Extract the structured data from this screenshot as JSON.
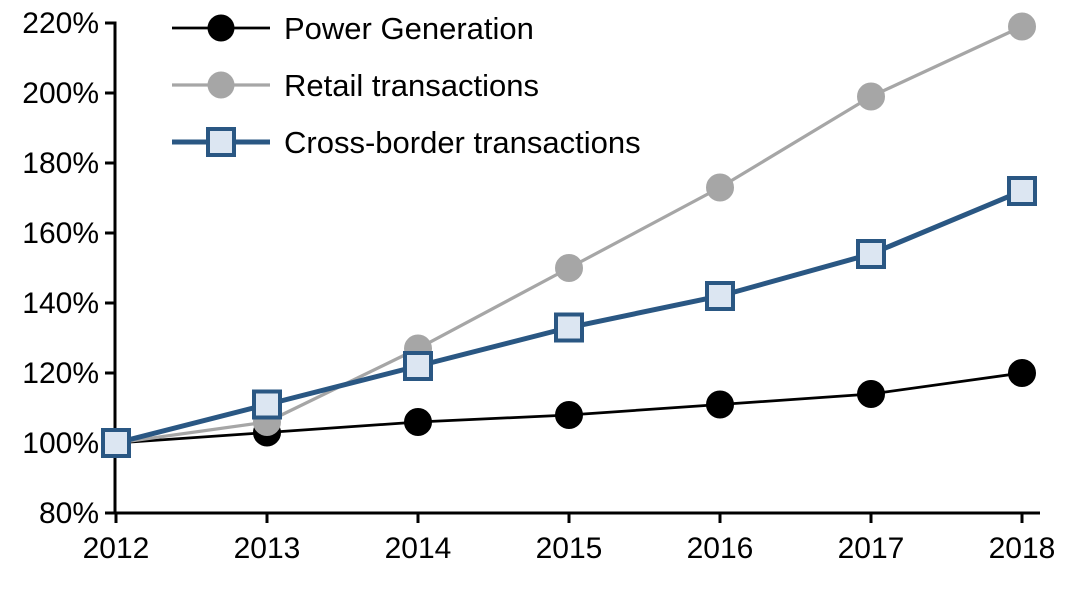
{
  "chart_data": {
    "type": "line",
    "title": "",
    "xlabel": "",
    "ylabel": "",
    "categories": [
      "2012",
      "2013",
      "2014",
      "2015",
      "2016",
      "2017",
      "2018"
    ],
    "series": [
      {
        "name": "Power Generation",
        "values": [
          100,
          103,
          106,
          108,
          111,
          114,
          120
        ],
        "color": "#000000",
        "marker": "circle",
        "marker_fill": "#000000",
        "line_width": 2.75
      },
      {
        "name": "Retail transactions",
        "values": [
          100,
          106,
          127,
          150,
          173,
          199,
          219
        ],
        "color": "#a6a6a6",
        "marker": "circle",
        "marker_fill": "#a6a6a6",
        "line_width": 3.25
      },
      {
        "name": "Cross-border transactions",
        "values": [
          100,
          111,
          122,
          133,
          142,
          154,
          172
        ],
        "color": "#2a5783",
        "marker": "square",
        "marker_fill": "#dce6f2",
        "line_width": 5
      }
    ],
    "ylim": [
      80,
      220
    ],
    "ytick_step": 20,
    "yticks": [
      {
        "value": 80,
        "label": "80%"
      },
      {
        "value": 100,
        "label": "100%"
      },
      {
        "value": 120,
        "label": "120%"
      },
      {
        "value": 140,
        "label": "140%"
      },
      {
        "value": 160,
        "label": "160%"
      },
      {
        "value": 180,
        "label": "180%"
      },
      {
        "value": 200,
        "label": "200%"
      },
      {
        "value": 220,
        "label": "220%"
      }
    ],
    "legend_position": "top-left",
    "grid": false,
    "axis_color": "#000000",
    "background_color": "#ffffff"
  }
}
